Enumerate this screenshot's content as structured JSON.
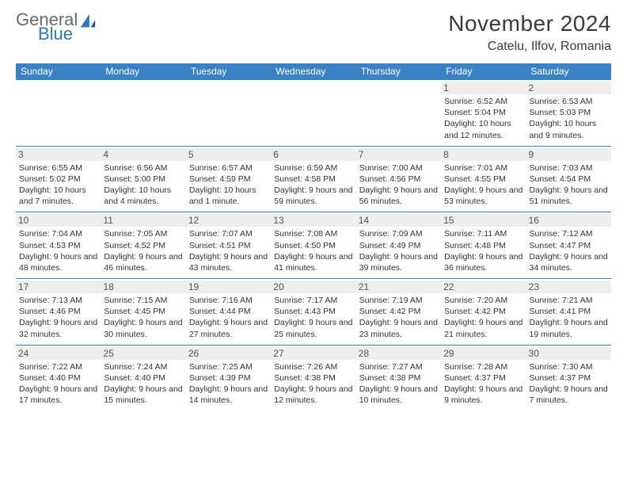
{
  "logo": {
    "word1": "General",
    "word2": "Blue"
  },
  "title": "November 2024",
  "location": "Catelu, Ilfov, Romania",
  "colors": {
    "header_bg": "#3b82c4",
    "header_fg": "#ffffff",
    "daynum_bg": "#eeeeee",
    "border": "#3b82c4",
    "logo_blue": "#2f77bb",
    "logo_gray": "#6a6a6a"
  },
  "weekdays": [
    "Sunday",
    "Monday",
    "Tuesday",
    "Wednesday",
    "Thursday",
    "Friday",
    "Saturday"
  ],
  "weeks": [
    [
      null,
      null,
      null,
      null,
      null,
      {
        "n": "1",
        "sr": "Sunrise: 6:52 AM",
        "ss": "Sunset: 5:04 PM",
        "dl": "Daylight: 10 hours and 12 minutes."
      },
      {
        "n": "2",
        "sr": "Sunrise: 6:53 AM",
        "ss": "Sunset: 5:03 PM",
        "dl": "Daylight: 10 hours and 9 minutes."
      }
    ],
    [
      {
        "n": "3",
        "sr": "Sunrise: 6:55 AM",
        "ss": "Sunset: 5:02 PM",
        "dl": "Daylight: 10 hours and 7 minutes."
      },
      {
        "n": "4",
        "sr": "Sunrise: 6:56 AM",
        "ss": "Sunset: 5:00 PM",
        "dl": "Daylight: 10 hours and 4 minutes."
      },
      {
        "n": "5",
        "sr": "Sunrise: 6:57 AM",
        "ss": "Sunset: 4:59 PM",
        "dl": "Daylight: 10 hours and 1 minute."
      },
      {
        "n": "6",
        "sr": "Sunrise: 6:59 AM",
        "ss": "Sunset: 4:58 PM",
        "dl": "Daylight: 9 hours and 59 minutes."
      },
      {
        "n": "7",
        "sr": "Sunrise: 7:00 AM",
        "ss": "Sunset: 4:56 PM",
        "dl": "Daylight: 9 hours and 56 minutes."
      },
      {
        "n": "8",
        "sr": "Sunrise: 7:01 AM",
        "ss": "Sunset: 4:55 PM",
        "dl": "Daylight: 9 hours and 53 minutes."
      },
      {
        "n": "9",
        "sr": "Sunrise: 7:03 AM",
        "ss": "Sunset: 4:54 PM",
        "dl": "Daylight: 9 hours and 51 minutes."
      }
    ],
    [
      {
        "n": "10",
        "sr": "Sunrise: 7:04 AM",
        "ss": "Sunset: 4:53 PM",
        "dl": "Daylight: 9 hours and 48 minutes."
      },
      {
        "n": "11",
        "sr": "Sunrise: 7:05 AM",
        "ss": "Sunset: 4:52 PM",
        "dl": "Daylight: 9 hours and 46 minutes."
      },
      {
        "n": "12",
        "sr": "Sunrise: 7:07 AM",
        "ss": "Sunset: 4:51 PM",
        "dl": "Daylight: 9 hours and 43 minutes."
      },
      {
        "n": "13",
        "sr": "Sunrise: 7:08 AM",
        "ss": "Sunset: 4:50 PM",
        "dl": "Daylight: 9 hours and 41 minutes."
      },
      {
        "n": "14",
        "sr": "Sunrise: 7:09 AM",
        "ss": "Sunset: 4:49 PM",
        "dl": "Daylight: 9 hours and 39 minutes."
      },
      {
        "n": "15",
        "sr": "Sunrise: 7:11 AM",
        "ss": "Sunset: 4:48 PM",
        "dl": "Daylight: 9 hours and 36 minutes."
      },
      {
        "n": "16",
        "sr": "Sunrise: 7:12 AM",
        "ss": "Sunset: 4:47 PM",
        "dl": "Daylight: 9 hours and 34 minutes."
      }
    ],
    [
      {
        "n": "17",
        "sr": "Sunrise: 7:13 AM",
        "ss": "Sunset: 4:46 PM",
        "dl": "Daylight: 9 hours and 32 minutes."
      },
      {
        "n": "18",
        "sr": "Sunrise: 7:15 AM",
        "ss": "Sunset: 4:45 PM",
        "dl": "Daylight: 9 hours and 30 minutes."
      },
      {
        "n": "19",
        "sr": "Sunrise: 7:16 AM",
        "ss": "Sunset: 4:44 PM",
        "dl": "Daylight: 9 hours and 27 minutes."
      },
      {
        "n": "20",
        "sr": "Sunrise: 7:17 AM",
        "ss": "Sunset: 4:43 PM",
        "dl": "Daylight: 9 hours and 25 minutes."
      },
      {
        "n": "21",
        "sr": "Sunrise: 7:19 AM",
        "ss": "Sunset: 4:42 PM",
        "dl": "Daylight: 9 hours and 23 minutes."
      },
      {
        "n": "22",
        "sr": "Sunrise: 7:20 AM",
        "ss": "Sunset: 4:42 PM",
        "dl": "Daylight: 9 hours and 21 minutes."
      },
      {
        "n": "23",
        "sr": "Sunrise: 7:21 AM",
        "ss": "Sunset: 4:41 PM",
        "dl": "Daylight: 9 hours and 19 minutes."
      }
    ],
    [
      {
        "n": "24",
        "sr": "Sunrise: 7:22 AM",
        "ss": "Sunset: 4:40 PM",
        "dl": "Daylight: 9 hours and 17 minutes."
      },
      {
        "n": "25",
        "sr": "Sunrise: 7:24 AM",
        "ss": "Sunset: 4:40 PM",
        "dl": "Daylight: 9 hours and 15 minutes."
      },
      {
        "n": "26",
        "sr": "Sunrise: 7:25 AM",
        "ss": "Sunset: 4:39 PM",
        "dl": "Daylight: 9 hours and 14 minutes."
      },
      {
        "n": "27",
        "sr": "Sunrise: 7:26 AM",
        "ss": "Sunset: 4:38 PM",
        "dl": "Daylight: 9 hours and 12 minutes."
      },
      {
        "n": "28",
        "sr": "Sunrise: 7:27 AM",
        "ss": "Sunset: 4:38 PM",
        "dl": "Daylight: 9 hours and 10 minutes."
      },
      {
        "n": "29",
        "sr": "Sunrise: 7:28 AM",
        "ss": "Sunset: 4:37 PM",
        "dl": "Daylight: 9 hours and 9 minutes."
      },
      {
        "n": "30",
        "sr": "Sunrise: 7:30 AM",
        "ss": "Sunset: 4:37 PM",
        "dl": "Daylight: 9 hours and 7 minutes."
      }
    ]
  ]
}
